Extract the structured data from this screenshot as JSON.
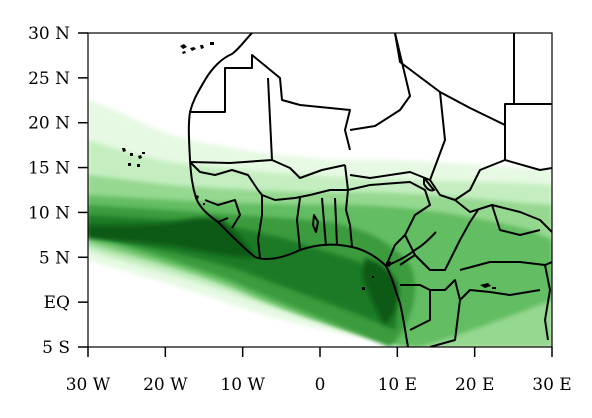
{
  "map": {
    "lon_range": [
      -30,
      30
    ],
    "lat_range": [
      -5,
      30
    ],
    "lat_ticks": [
      {
        "value": 30,
        "label": "30 N"
      },
      {
        "value": 25,
        "label": "25 N"
      },
      {
        "value": 20,
        "label": "20 N"
      },
      {
        "value": 15,
        "label": "15 N"
      },
      {
        "value": 10,
        "label": "10 N"
      },
      {
        "value": 5,
        "label": "5 N"
      },
      {
        "value": 0,
        "label": "EQ"
      },
      {
        "value": -5,
        "label": "5 S"
      }
    ],
    "lon_ticks": [
      {
        "value": -30,
        "label": "30 W"
      },
      {
        "value": -20,
        "label": "20 W"
      },
      {
        "value": -10,
        "label": "10 W"
      },
      {
        "value": 0,
        "label": "0"
      },
      {
        "value": 10,
        "label": "10 E"
      },
      {
        "value": 20,
        "label": "20 E"
      },
      {
        "value": 30,
        "label": "30 E"
      }
    ],
    "shading_colors": [
      "#e6f9e3",
      "#c4eec0",
      "#95d890",
      "#63bd62",
      "#3a9b3c",
      "#1e7a25",
      "#0b5a14"
    ],
    "border_color": "#000000"
  }
}
